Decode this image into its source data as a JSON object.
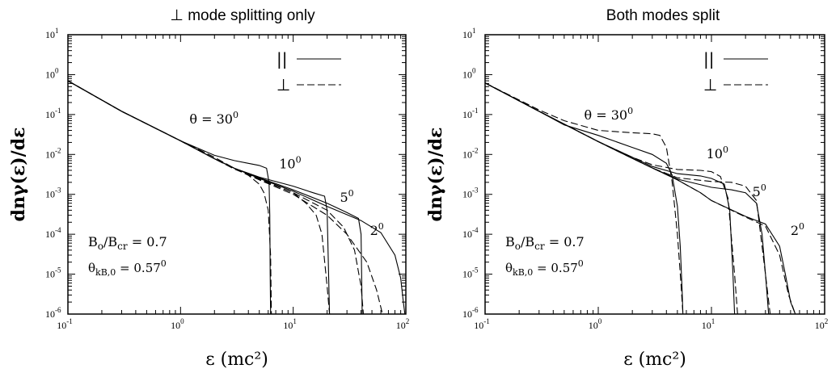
{
  "chart_data": [
    {
      "type": "line",
      "title": "⊥ mode splitting only",
      "xlabel": "ε (mc²)",
      "ylabel": "dnγ(ε)/dε",
      "xscale": "log",
      "yscale": "log",
      "xlim": [
        0.1,
        100
      ],
      "ylim": [
        1e-06,
        10
      ],
      "grid": false,
      "legend": {
        "placement": "top-right",
        "entries": [
          {
            "symbol": "||",
            "style": "solid"
          },
          {
            "symbol": "⊥",
            "style": "dashed"
          }
        ]
      },
      "annotations": {
        "angles": [
          {
            "text": "θ = 30",
            "sup": "0",
            "x": 1.2,
            "y": 0.06
          },
          {
            "text": "10",
            "sup": "0",
            "x": 7.5,
            "y": 0.0045
          },
          {
            "text": "5",
            "sup": "0",
            "x": 26,
            "y": 0.00065
          },
          {
            "text": "2",
            "sup": "0",
            "x": 48,
            "y": 9.5e-05
          }
        ],
        "field": {
          "main": "B",
          "sub1": "o",
          "slash": "/B",
          "sub2": "cr",
          "value": " = 0.7"
        },
        "theta": {
          "main": "θ",
          "sub": "kB,0",
          "value": " = 0.57",
          "sup": "0"
        }
      },
      "series": [
        {
          "label_ref": "30",
          "mode": "parallel",
          "style": "solid",
          "x": [
            0.1,
            0.3,
            1,
            2,
            3,
            4,
            5,
            5.8,
            6.1,
            6.2,
            6.25,
            6.3
          ],
          "y": [
            0.7,
            0.12,
            0.022,
            0.0095,
            0.007,
            0.006,
            0.0053,
            0.0045,
            0.002,
            0.0003,
            1e-05,
            1e-06
          ]
        },
        {
          "label_ref": "30",
          "mode": "perpendicular",
          "style": "dashed",
          "x": [
            0.1,
            0.3,
            1,
            2,
            3,
            4,
            5,
            5.5,
            6,
            6.3,
            6.4
          ],
          "y": [
            0.7,
            0.12,
            0.022,
            0.0085,
            0.0045,
            0.003,
            0.0018,
            0.0011,
            0.0004,
            3e-05,
            1e-06
          ]
        },
        {
          "label_ref": "10",
          "mode": "parallel",
          "style": "solid",
          "x": [
            0.1,
            0.3,
            1,
            2,
            3,
            5,
            10,
            15,
            19,
            20,
            20.5,
            21
          ],
          "y": [
            0.7,
            0.12,
            0.022,
            0.0078,
            0.0045,
            0.0027,
            0.0016,
            0.0011,
            0.0009,
            0.0004,
            2e-05,
            1e-06
          ]
        },
        {
          "label_ref": "10",
          "mode": "perpendicular",
          "style": "dashed",
          "x": [
            0.1,
            0.3,
            1,
            2,
            3,
            5,
            10,
            13,
            16,
            18,
            20,
            21
          ],
          "y": [
            0.7,
            0.12,
            0.022,
            0.0078,
            0.0043,
            0.0024,
            0.0011,
            0.0006,
            0.0003,
            0.0001,
            5e-06,
            1e-06
          ]
        },
        {
          "label_ref": "5",
          "mode": "parallel",
          "style": "solid",
          "x": [
            0.1,
            0.3,
            1,
            2,
            3,
            5,
            10,
            20,
            30,
            38,
            40,
            41
          ],
          "y": [
            0.7,
            0.12,
            0.022,
            0.0078,
            0.0045,
            0.0026,
            0.0013,
            0.0006,
            0.00035,
            0.00025,
            0.0001,
            1e-06
          ]
        },
        {
          "label_ref": "5",
          "mode": "perpendicular",
          "style": "dashed",
          "x": [
            0.1,
            0.3,
            1,
            2,
            3,
            5,
            10,
            20,
            28,
            35,
            40,
            42
          ],
          "y": [
            0.7,
            0.12,
            0.022,
            0.0078,
            0.0044,
            0.0024,
            0.0011,
            0.0004,
            0.00015,
            4e-05,
            5e-06,
            1e-06
          ]
        },
        {
          "label_ref": "2",
          "mode": "parallel",
          "style": "solid",
          "x": [
            0.1,
            0.3,
            1,
            2,
            3,
            5,
            10,
            20,
            40,
            60,
            80,
            90,
            95,
            98
          ],
          "y": [
            0.7,
            0.12,
            0.022,
            0.0078,
            0.0045,
            0.0025,
            0.0012,
            0.0005,
            0.00022,
            0.00011,
            3e-05,
            8e-06,
            2e-06,
            1e-06
          ]
        },
        {
          "label_ref": "2",
          "mode": "perpendicular",
          "style": "dashed",
          "x": [
            0.1,
            0.3,
            1,
            2,
            3,
            5,
            10,
            20,
            30,
            45,
            55,
            62
          ],
          "y": [
            0.7,
            0.12,
            0.022,
            0.0078,
            0.0044,
            0.0023,
            0.001,
            0.0003,
            0.0001,
            2e-05,
            4e-06,
            1e-06
          ]
        }
      ]
    },
    {
      "type": "line",
      "title": "Both modes split",
      "xlabel": "ε (mc²)",
      "ylabel": "dnγ(ε)/dε",
      "xscale": "log",
      "yscale": "log",
      "xlim": [
        0.1,
        100
      ],
      "ylim": [
        1e-06,
        10
      ],
      "grid": false,
      "legend": {
        "placement": "top-right",
        "entries": [
          {
            "symbol": "||",
            "style": "solid"
          },
          {
            "symbol": "⊥",
            "style": "dashed"
          }
        ]
      },
      "annotations": {
        "angles": [
          {
            "text": "θ = 30",
            "sup": "0",
            "x": 0.75,
            "y": 0.075
          },
          {
            "text": "10",
            "sup": "0",
            "x": 9,
            "y": 0.008
          },
          {
            "text": "5",
            "sup": "0",
            "x": 23,
            "y": 0.0009
          },
          {
            "text": "2",
            "sup": "0",
            "x": 50,
            "y": 9.5e-05
          }
        ],
        "field": {
          "main": "B",
          "sub1": "o",
          "slash": "/B",
          "sub2": "cr",
          "value": " = 0.7"
        },
        "theta": {
          "main": "θ",
          "sub": "kB,0",
          "value": " = 0.57",
          "sup": "0"
        }
      },
      "series": [
        {
          "label_ref": "30",
          "mode": "parallel",
          "style": "solid",
          "x": [
            0.1,
            0.3,
            0.5,
            1,
            2,
            3,
            4,
            4.5,
            5,
            5.3,
            5.5,
            5.6
          ],
          "y": [
            0.62,
            0.12,
            0.055,
            0.03,
            0.015,
            0.01,
            0.006,
            0.003,
            0.0005,
            5e-05,
            4e-06,
            1e-06
          ]
        },
        {
          "label_ref": "30",
          "mode": "perpendicular",
          "style": "dashed",
          "x": [
            0.1,
            0.3,
            0.5,
            1,
            2,
            3,
            3.5,
            4,
            4.5,
            5,
            5.4,
            5.6
          ],
          "y": [
            0.62,
            0.13,
            0.07,
            0.04,
            0.035,
            0.033,
            0.03,
            0.015,
            0.002,
            0.0001,
            5e-06,
            1e-06
          ]
        },
        {
          "label_ref": "10",
          "mode": "parallel",
          "style": "solid",
          "x": [
            0.1,
            0.3,
            1,
            2,
            3,
            5,
            8,
            10,
            13,
            14.5,
            15.5,
            16
          ],
          "y": [
            0.62,
            0.12,
            0.021,
            0.0085,
            0.005,
            0.0033,
            0.0029,
            0.0025,
            0.0018,
            0.0004,
            1e-05,
            1e-06
          ]
        },
        {
          "label_ref": "10",
          "mode": "perpendicular",
          "style": "dashed",
          "x": [
            0.1,
            0.3,
            1,
            2,
            3,
            5,
            8,
            10,
            12,
            14,
            16,
            17
          ],
          "y": [
            0.62,
            0.12,
            0.021,
            0.0085,
            0.0055,
            0.0042,
            0.004,
            0.0037,
            0.0028,
            0.0008,
            1e-05,
            1e-06
          ]
        },
        {
          "label_ref": "5",
          "mode": "parallel",
          "style": "solid",
          "x": [
            0.1,
            0.3,
            1,
            2,
            3,
            5,
            10,
            15,
            20,
            25,
            28,
            30,
            32
          ],
          "y": [
            0.62,
            0.12,
            0.021,
            0.008,
            0.0046,
            0.0024,
            0.0015,
            0.0013,
            0.0011,
            0.0006,
            0.0001,
            1e-05,
            1e-06
          ]
        },
        {
          "label_ref": "5",
          "mode": "perpendicular",
          "style": "dashed",
          "x": [
            0.1,
            0.3,
            1,
            2,
            3,
            5,
            10,
            15,
            20,
            25,
            30,
            33
          ],
          "y": [
            0.62,
            0.12,
            0.021,
            0.008,
            0.0046,
            0.0026,
            0.0021,
            0.002,
            0.0016,
            0.0007,
            1e-05,
            1e-06
          ]
        },
        {
          "label_ref": "2",
          "mode": "parallel",
          "style": "solid",
          "x": [
            0.1,
            0.3,
            1,
            2,
            3,
            5,
            8,
            10,
            20,
            30,
            40,
            45,
            50,
            55
          ],
          "y": [
            0.62,
            0.12,
            0.021,
            0.008,
            0.0046,
            0.0023,
            0.0011,
            0.0007,
            0.00028,
            0.00018,
            5e-05,
            1e-05,
            2e-06,
            1e-06
          ]
        },
        {
          "label_ref": "2",
          "mode": "perpendicular",
          "style": "dashed",
          "x": [
            0.1,
            0.3,
            1,
            2,
            3,
            5,
            8,
            10,
            20,
            30,
            40,
            48,
            55
          ],
          "y": [
            0.62,
            0.12,
            0.021,
            0.008,
            0.0046,
            0.0023,
            0.0011,
            0.0007,
            0.00027,
            0.00016,
            3e-05,
            3e-06,
            1e-06
          ]
        }
      ]
    }
  ]
}
